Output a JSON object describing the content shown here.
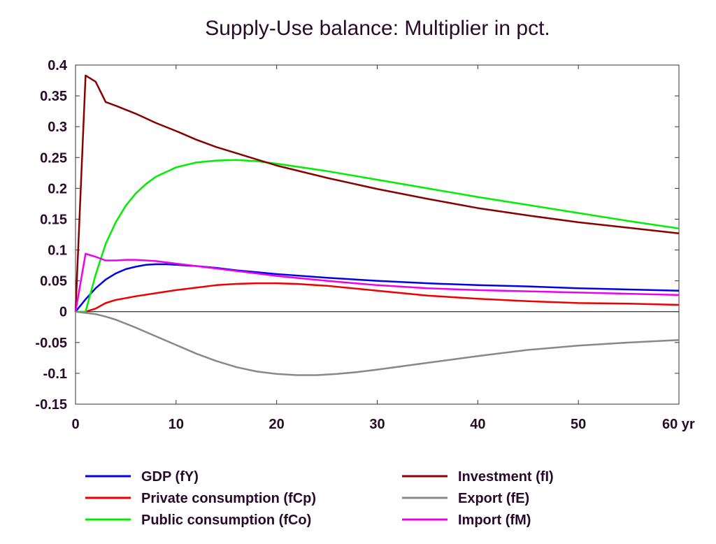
{
  "chart_data": {
    "type": "line",
    "title": "Supply-Use balance: Multiplier in pct.",
    "xlabel": "",
    "ylabel": "",
    "x_unit_label": "yr",
    "xlim": [
      0,
      60
    ],
    "ylim": [
      -0.15,
      0.4
    ],
    "xticks": [
      0,
      10,
      20,
      30,
      40,
      50,
      60
    ],
    "xtick_labels": [
      "0",
      "10",
      "20",
      "30",
      "40",
      "50",
      "60 yr"
    ],
    "yticks": [
      0.4,
      0.35,
      0.3,
      0.25,
      0.2,
      0.15,
      0.1,
      0.05,
      0,
      -0.05,
      -0.1,
      -0.15
    ],
    "ytick_labels": [
      "0.4",
      "0.35",
      "0.3",
      "0.25",
      "0.2",
      "0.15",
      "0.1",
      "0.05",
      "0",
      "-0.05",
      "-0.1",
      "-0.15"
    ],
    "grid": false,
    "zero_line": true,
    "legend_position": "bottom",
    "series": [
      {
        "name": "GDP (fY)",
        "color": "#0000ee",
        "x": [
          0,
          1,
          2,
          3,
          4,
          5,
          6,
          7,
          8,
          9,
          10,
          12,
          14,
          16,
          18,
          20,
          25,
          30,
          35,
          40,
          45,
          50,
          55,
          60
        ],
        "y": [
          0,
          0.02,
          0.038,
          0.052,
          0.062,
          0.069,
          0.073,
          0.076,
          0.077,
          0.077,
          0.076,
          0.074,
          0.071,
          0.067,
          0.064,
          0.061,
          0.055,
          0.05,
          0.046,
          0.043,
          0.041,
          0.038,
          0.036,
          0.034
        ]
      },
      {
        "name": "Private consumption (fCp)",
        "color": "#ee0000",
        "x": [
          0,
          1,
          2,
          3,
          4,
          6,
          8,
          10,
          12,
          14,
          16,
          18,
          20,
          22,
          25,
          30,
          35,
          40,
          45,
          50,
          55,
          60
        ],
        "y": [
          0,
          0.0,
          0.005,
          0.014,
          0.019,
          0.025,
          0.03,
          0.035,
          0.039,
          0.043,
          0.045,
          0.046,
          0.046,
          0.045,
          0.042,
          0.034,
          0.026,
          0.021,
          0.017,
          0.014,
          0.013,
          0.011
        ]
      },
      {
        "name": "Public consumption (fCo)",
        "color": "#00ee00",
        "x": [
          0,
          1,
          2,
          3,
          4,
          5,
          6,
          7,
          8,
          10,
          12,
          14,
          16,
          18,
          20,
          25,
          30,
          35,
          40,
          45,
          50,
          55,
          60
        ],
        "y": [
          0,
          0.0,
          0.06,
          0.11,
          0.145,
          0.172,
          0.192,
          0.207,
          0.219,
          0.234,
          0.242,
          0.245,
          0.246,
          0.244,
          0.24,
          0.228,
          0.214,
          0.2,
          0.186,
          0.173,
          0.16,
          0.147,
          0.135
        ]
      },
      {
        "name": "Investment (fI)",
        "color": "#880000",
        "x": [
          0,
          1,
          2,
          3,
          4,
          6,
          8,
          10,
          12,
          14,
          16,
          18,
          20,
          25,
          30,
          35,
          40,
          45,
          50,
          55,
          60
        ],
        "y": [
          0,
          0.383,
          0.373,
          0.34,
          0.334,
          0.321,
          0.306,
          0.293,
          0.279,
          0.267,
          0.257,
          0.247,
          0.237,
          0.217,
          0.199,
          0.183,
          0.168,
          0.156,
          0.145,
          0.136,
          0.127
        ]
      },
      {
        "name": "Export (fE)",
        "color": "#888888",
        "x": [
          0,
          1,
          2,
          3,
          4,
          6,
          8,
          10,
          12,
          14,
          16,
          18,
          20,
          22,
          24,
          26,
          28,
          30,
          35,
          40,
          45,
          50,
          55,
          60
        ],
        "y": [
          0,
          -0.002,
          -0.004,
          -0.008,
          -0.013,
          -0.026,
          -0.04,
          -0.054,
          -0.068,
          -0.08,
          -0.09,
          -0.097,
          -0.101,
          -0.103,
          -0.103,
          -0.101,
          -0.098,
          -0.094,
          -0.083,
          -0.072,
          -0.062,
          -0.055,
          -0.05,
          -0.046
        ]
      },
      {
        "name": "Import (fM)",
        "color": "#ee00ee",
        "x": [
          0,
          1,
          2,
          3,
          4,
          5,
          6,
          7,
          8,
          10,
          12,
          14,
          16,
          18,
          20,
          25,
          30,
          35,
          40,
          45,
          50,
          55,
          60
        ],
        "y": [
          0,
          0.094,
          0.089,
          0.083,
          0.083,
          0.084,
          0.084,
          0.083,
          0.082,
          0.078,
          0.074,
          0.07,
          0.066,
          0.062,
          0.058,
          0.05,
          0.043,
          0.038,
          0.035,
          0.033,
          0.031,
          0.029,
          0.027
        ]
      }
    ]
  }
}
